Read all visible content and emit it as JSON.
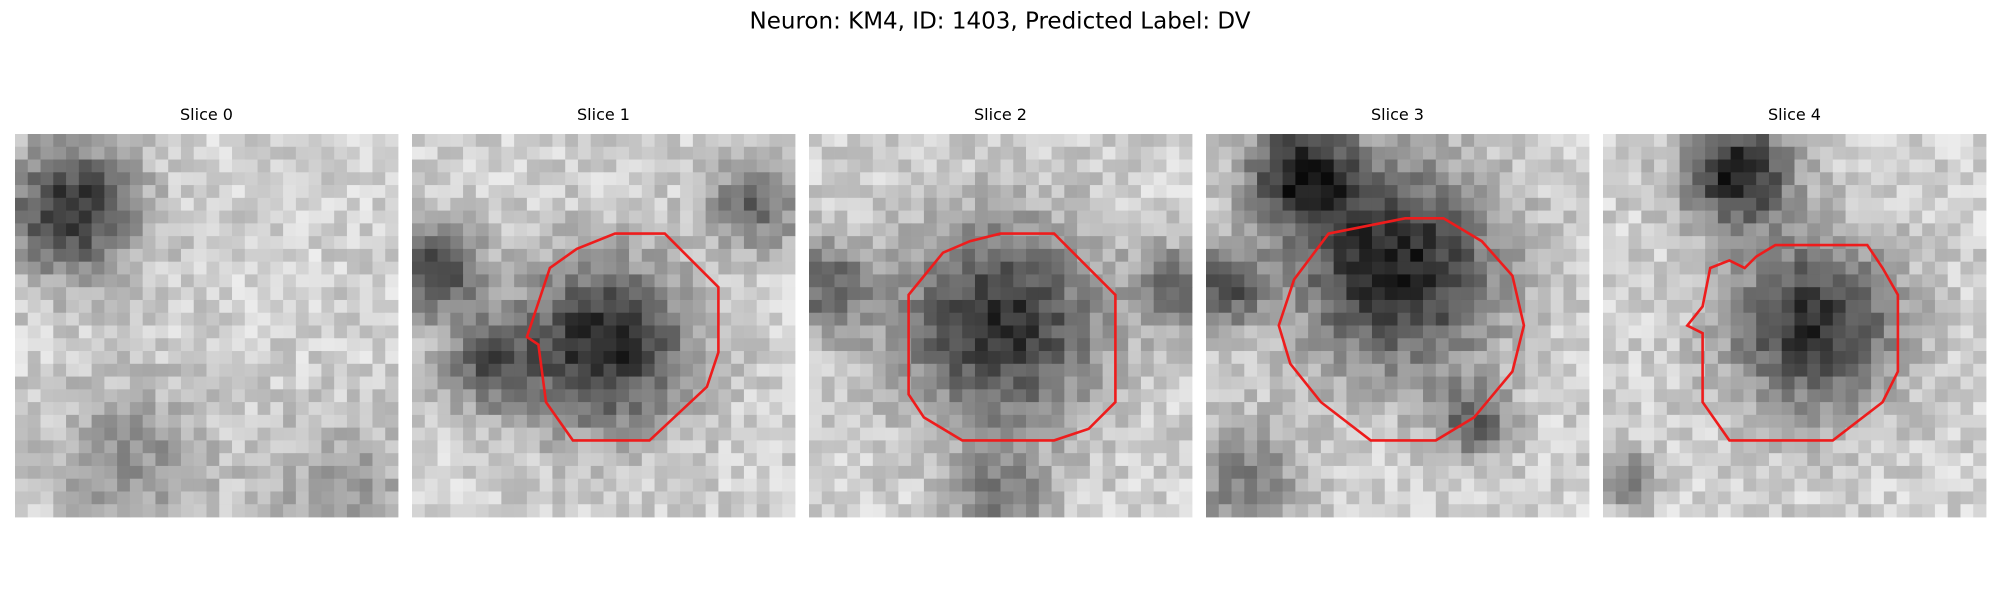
{
  "header": {
    "title": "Neuron: KM4, ID: 1403, Predicted Label: DV"
  },
  "panels": [
    {
      "title": "Slice 0"
    },
    {
      "title": "Slice 1"
    },
    {
      "title": "Slice 2"
    },
    {
      "title": "Slice 3"
    },
    {
      "title": "Slice 4"
    }
  ]
}
